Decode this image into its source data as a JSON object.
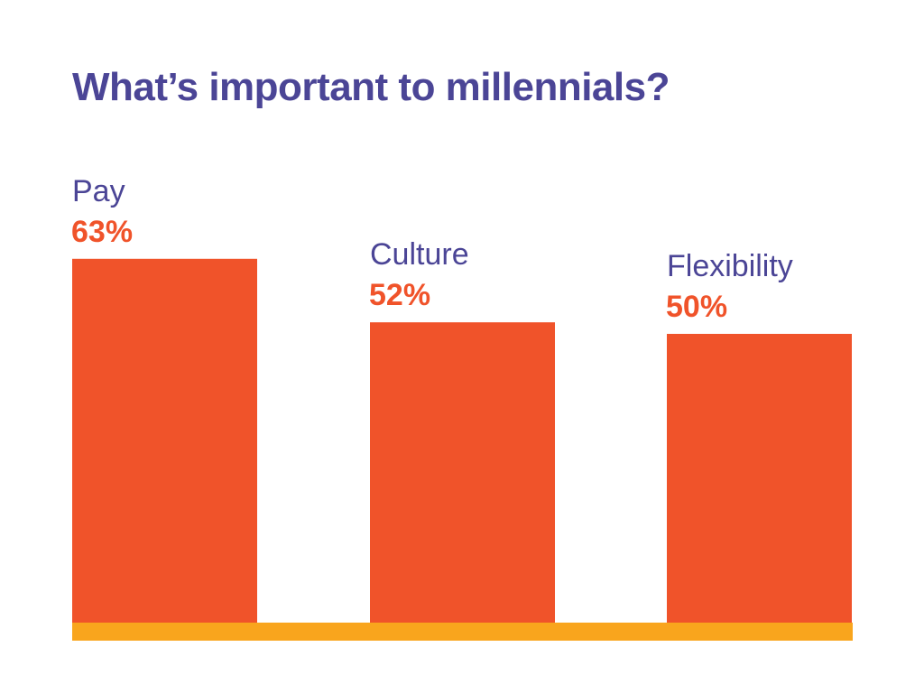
{
  "chart_data": {
    "type": "bar",
    "title": "What’s important to millennials?",
    "categories": [
      "Pay",
      "Culture",
      "Flexibility"
    ],
    "values": [
      63,
      52,
      50
    ],
    "value_labels": [
      "63%",
      "52%",
      "50%"
    ],
    "unit": "%",
    "xlabel": "",
    "ylabel": "",
    "grid": false,
    "legend": "none",
    "colors": {
      "bar": "#f0532a",
      "baseline": "#f9a51d",
      "title": "#4b4596",
      "category_label": "#4b4596",
      "value_label": "#f0532a"
    }
  }
}
